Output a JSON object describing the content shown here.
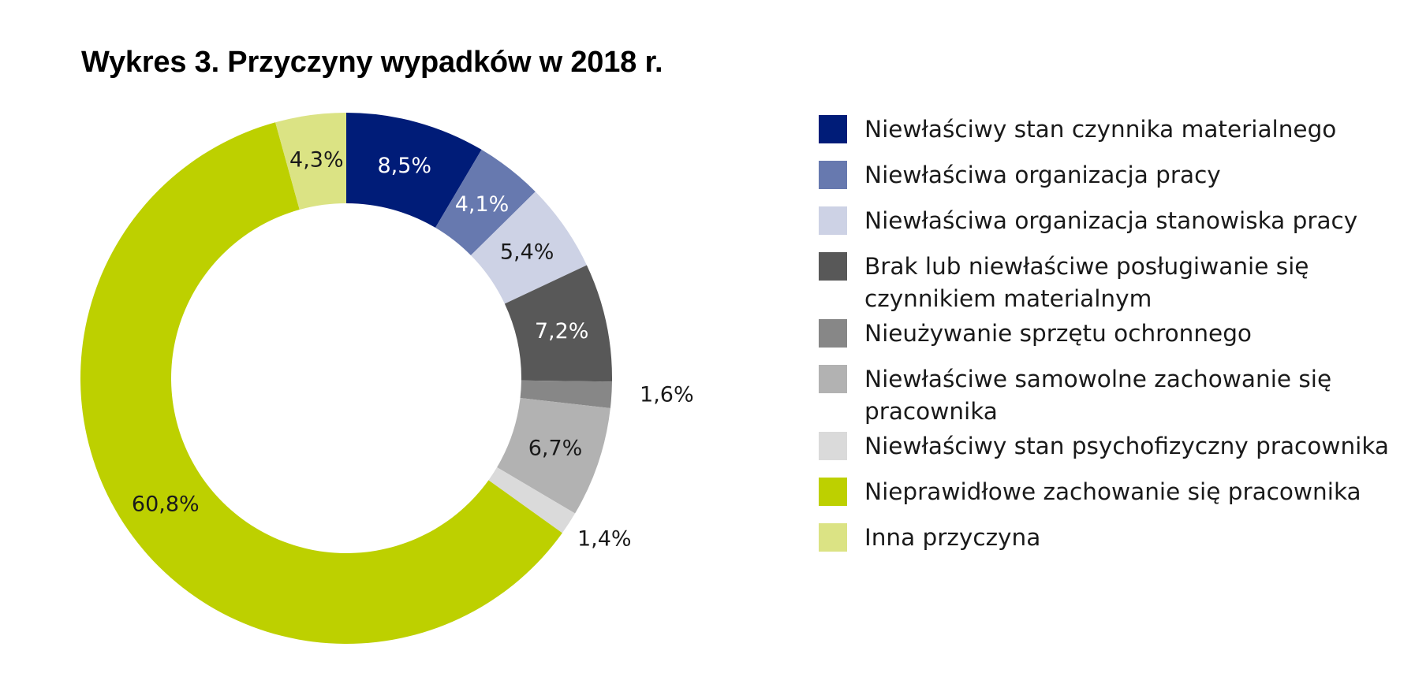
{
  "title": "Wykres 3. Przyczyny wypadków w 2018 r.",
  "chart_data": {
    "type": "pie",
    "variant": "donut",
    "title": "Wykres 3. Przyczyny wypadków w 2018 r.",
    "unit": "%",
    "legend_position": "right",
    "slices": [
      {
        "name": "Niewłaściwy stan czynnika materialnego",
        "value": 8.5,
        "label": "8,5%",
        "color": "#001C78",
        "label_color": "#ffffff"
      },
      {
        "name": "Niewłaściwa organizacja pracy",
        "value": 4.1,
        "label": "4,1%",
        "color": "#6779AF",
        "label_color": "#ffffff"
      },
      {
        "name": "Niewłaściwa organizacja stanowiska pracy",
        "value": 5.4,
        "label": "5,4%",
        "color": "#CDD2E5",
        "label_color": "#1a1a1a"
      },
      {
        "name": "Brak lub niewłaściwe posługiwanie się czynnikiem materialnym",
        "value": 7.2,
        "label": "7,2%",
        "color": "#585858",
        "label_color": "#ffffff"
      },
      {
        "name": "Nieużywanie sprzętu ochronnego",
        "value": 1.6,
        "label": "1,6%",
        "color": "#878787",
        "label_color": "#1a1a1a"
      },
      {
        "name": "Niewłaściwe samowolne zachowanie się pracownika",
        "value": 6.7,
        "label": "6,7%",
        "color": "#B2B2B2",
        "label_color": "#1a1a1a"
      },
      {
        "name": "Niewłaściwy stan psychofizyczny pracownika",
        "value": 1.4,
        "label": "1,4%",
        "color": "#DADADA",
        "label_color": "#1a1a1a"
      },
      {
        "name": "Nieprawidłowe zachowanie się pracownika",
        "value": 60.8,
        "label": "60,8%",
        "color": "#BDD000",
        "label_color": "#1a1a1a"
      },
      {
        "name": "Inna przyczyna",
        "value": 4.3,
        "label": "4,3%",
        "color": "#DBE384",
        "label_color": "#1a1a1a"
      }
    ]
  }
}
